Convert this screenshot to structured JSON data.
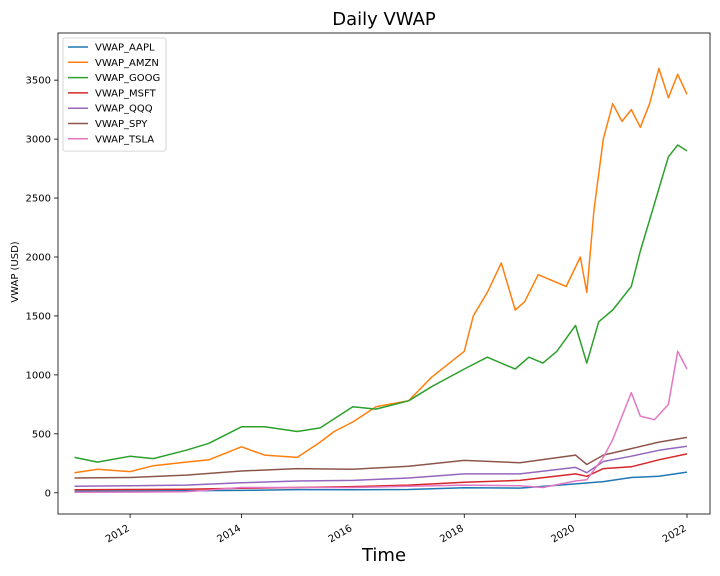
{
  "chart_data": {
    "type": "line",
    "title": "Daily VWAP",
    "xlabel": "Time",
    "ylabel": "VWAP (USD)",
    "xlim": [
      "2010-09-15",
      "2022-06-01"
    ],
    "ylim": [
      -180,
      3900
    ],
    "x_ticks": [
      "2012-01-01",
      "2014-01-01",
      "2016-01-01",
      "2018-01-01",
      "2020-01-01",
      "2022-01-01"
    ],
    "x_tick_labels": [
      "2012",
      "2014",
      "2016",
      "2018",
      "2020",
      "2022"
    ],
    "y_ticks": [
      0,
      500,
      1000,
      1500,
      2000,
      2500,
      3000,
      3500
    ],
    "y_tick_labels": [
      "0",
      "500",
      "1000",
      "1500",
      "2000",
      "2500",
      "3000",
      "3500"
    ],
    "grid": false,
    "legend_position": "top-left",
    "series": [
      {
        "name": "VWAP_AAPL",
        "color": "#1f77b4",
        "x": [
          "2011-01-01",
          "2012-01-01",
          "2013-01-01",
          "2014-01-01",
          "2015-01-01",
          "2016-01-01",
          "2017-01-01",
          "2018-01-01",
          "2019-01-01",
          "2020-01-01",
          "2020-07-01",
          "2021-01-01",
          "2021-07-01",
          "2022-01-01"
        ],
        "y": [
          12,
          15,
          18,
          20,
          27,
          25,
          28,
          42,
          40,
          75,
          95,
          130,
          140,
          175
        ]
      },
      {
        "name": "VWAP_AMZN",
        "color": "#ff7f0e",
        "x": [
          "2011-01-01",
          "2011-06-01",
          "2012-01-01",
          "2012-06-01",
          "2013-01-01",
          "2013-06-01",
          "2014-01-01",
          "2014-06-01",
          "2015-01-01",
          "2015-06-01",
          "2015-09-01",
          "2016-01-01",
          "2016-06-01",
          "2017-01-01",
          "2017-06-01",
          "2018-01-01",
          "2018-03-01",
          "2018-06-01",
          "2018-09-01",
          "2018-12-01",
          "2019-02-01",
          "2019-05-01",
          "2019-08-01",
          "2019-11-01",
          "2020-02-01",
          "2020-03-15",
          "2020-05-01",
          "2020-07-01",
          "2020-09-01",
          "2020-11-01",
          "2021-01-01",
          "2021-03-01",
          "2021-05-01",
          "2021-07-01",
          "2021-09-01",
          "2021-11-01",
          "2022-01-01"
        ],
        "y": [
          170,
          200,
          180,
          230,
          260,
          280,
          390,
          320,
          300,
          430,
          520,
          600,
          730,
          780,
          980,
          1200,
          1500,
          1700,
          1950,
          1550,
          1620,
          1850,
          1800,
          1750,
          2000,
          1700,
          2400,
          3000,
          3300,
          3150,
          3250,
          3100,
          3300,
          3600,
          3350,
          3550,
          3380
        ]
      },
      {
        "name": "VWAP_GOOG",
        "color": "#2ca02c",
        "x": [
          "2011-01-01",
          "2011-06-01",
          "2012-01-01",
          "2012-06-01",
          "2013-01-01",
          "2013-06-01",
          "2014-01-01",
          "2014-06-01",
          "2015-01-01",
          "2015-06-01",
          "2016-01-01",
          "2016-06-01",
          "2017-01-01",
          "2017-06-01",
          "2018-01-01",
          "2018-06-01",
          "2018-12-01",
          "2019-03-01",
          "2019-06-01",
          "2019-09-01",
          "2020-01-01",
          "2020-03-15",
          "2020-06-01",
          "2020-09-01",
          "2021-01-01",
          "2021-03-01",
          "2021-06-01",
          "2021-09-01",
          "2021-11-01",
          "2022-01-01"
        ],
        "y": [
          300,
          260,
          310,
          290,
          360,
          420,
          560,
          560,
          520,
          550,
          730,
          710,
          780,
          900,
          1050,
          1150,
          1050,
          1150,
          1100,
          1200,
          1420,
          1100,
          1450,
          1550,
          1750,
          2050,
          2450,
          2850,
          2950,
          2900
        ]
      },
      {
        "name": "VWAP_MSFT",
        "color": "#d62728",
        "x": [
          "2011-01-01",
          "2012-01-01",
          "2013-01-01",
          "2014-01-01",
          "2015-01-01",
          "2016-01-01",
          "2017-01-01",
          "2018-01-01",
          "2019-01-01",
          "2020-01-01",
          "2020-03-15",
          "2020-07-01",
          "2021-01-01",
          "2021-07-01",
          "2022-01-01"
        ],
        "y": [
          26,
          28,
          30,
          38,
          45,
          52,
          65,
          90,
          105,
          160,
          140,
          205,
          220,
          280,
          330
        ]
      },
      {
        "name": "VWAP_QQQ",
        "color": "#9467bd",
        "x": [
          "2011-01-01",
          "2012-01-01",
          "2013-01-01",
          "2014-01-01",
          "2015-01-01",
          "2016-01-01",
          "2017-01-01",
          "2018-01-01",
          "2019-01-01",
          "2020-01-01",
          "2020-03-15",
          "2020-07-01",
          "2021-01-01",
          "2021-07-01",
          "2022-01-01"
        ],
        "y": [
          55,
          60,
          65,
          85,
          100,
          105,
          125,
          160,
          160,
          215,
          170,
          265,
          310,
          360,
          395
        ]
      },
      {
        "name": "VWAP_SPY",
        "color": "#8c564b",
        "x": [
          "2011-01-01",
          "2012-01-01",
          "2013-01-01",
          "2014-01-01",
          "2015-01-01",
          "2016-01-01",
          "2017-01-01",
          "2018-01-01",
          "2019-01-01",
          "2020-01-01",
          "2020-03-15",
          "2020-07-01",
          "2021-01-01",
          "2021-07-01",
          "2022-01-01"
        ],
        "y": [
          125,
          130,
          150,
          185,
          205,
          200,
          225,
          275,
          255,
          320,
          240,
          320,
          375,
          430,
          470
        ]
      },
      {
        "name": "VWAP_TSLA",
        "color": "#e377c2",
        "x": [
          "2011-01-01",
          "2012-01-01",
          "2013-01-01",
          "2014-01-01",
          "2015-01-01",
          "2016-01-01",
          "2017-01-01",
          "2018-01-01",
          "2019-01-01",
          "2019-06-01",
          "2020-01-01",
          "2020-03-15",
          "2020-07-01",
          "2020-09-01",
          "2021-01-01",
          "2021-03-01",
          "2021-06-01",
          "2021-09-01",
          "2021-11-01",
          "2022-01-01"
        ],
        "y": [
          5,
          6,
          8,
          45,
          45,
          45,
          55,
          65,
          60,
          45,
          100,
          110,
          300,
          450,
          850,
          650,
          620,
          750,
          1200,
          1050
        ]
      }
    ]
  }
}
